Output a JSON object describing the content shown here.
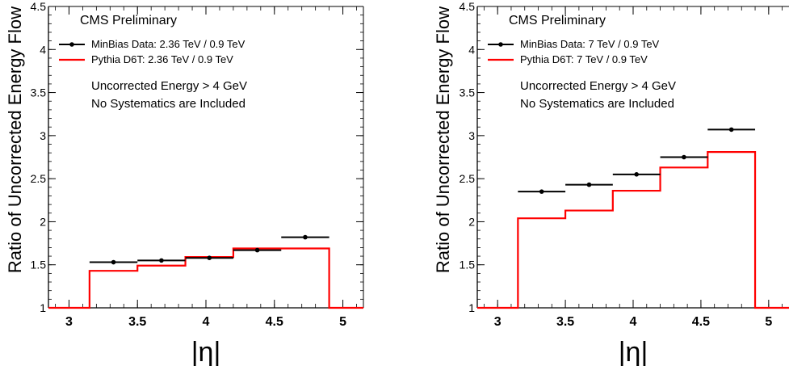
{
  "chart_data": [
    {
      "type": "step",
      "title": "",
      "xlabel": "|η|",
      "ylabel": "Ratio of Uncorrected Energy Flow",
      "xlim": [
        2.85,
        5.15
      ],
      "ylim": [
        1,
        4.5
      ],
      "xticks": [
        "3",
        "3.5",
        "4",
        "4.5",
        "5"
      ],
      "yticks": [
        "1",
        "1.5",
        "2",
        "2.5",
        "3",
        "3.5",
        "4",
        "4.5"
      ],
      "legend_position": "top-left",
      "annotations": [
        "CMS Preliminary",
        "Uncorrected Energy > 4 GeV",
        "No Systematics are Included"
      ],
      "series": [
        {
          "name": "MinBias Data: 2.36 TeV / 0.9 TeV",
          "kind": "points",
          "color": "#000000",
          "bins": [
            [
              3.15,
              3.5
            ],
            [
              3.5,
              3.85
            ],
            [
              3.85,
              4.2
            ],
            [
              4.2,
              4.55
            ],
            [
              4.55,
              4.9
            ]
          ],
          "values": [
            1.53,
            1.55,
            1.58,
            1.67,
            1.82
          ]
        },
        {
          "name": "Pythia D6T: 2.36 TeV / 0.9 TeV",
          "kind": "histogram",
          "color": "#ff0000",
          "edges": [
            2.85,
            3.15,
            3.5,
            3.85,
            4.2,
            4.55,
            4.9,
            5.15
          ],
          "values": [
            1,
            1.43,
            1.49,
            1.59,
            1.69,
            1.69,
            1
          ]
        }
      ]
    },
    {
      "type": "step",
      "title": "",
      "xlabel": "|η|",
      "ylabel": "Ratio of Uncorrected Energy Flow",
      "xlim": [
        2.85,
        5.15
      ],
      "ylim": [
        1,
        4.5
      ],
      "xticks": [
        "3",
        "3.5",
        "4",
        "4.5",
        "5"
      ],
      "yticks": [
        "1",
        "1.5",
        "2",
        "2.5",
        "3",
        "3.5",
        "4",
        "4.5"
      ],
      "legend_position": "top-left",
      "annotations": [
        "CMS Preliminary",
        "Uncorrected Energy > 4 GeV",
        "No Systematics are Included"
      ],
      "series": [
        {
          "name": "MinBias Data: 7 TeV / 0.9 TeV",
          "kind": "points",
          "color": "#000000",
          "bins": [
            [
              3.15,
              3.5
            ],
            [
              3.5,
              3.85
            ],
            [
              3.85,
              4.2
            ],
            [
              4.2,
              4.55
            ],
            [
              4.55,
              4.9
            ]
          ],
          "values": [
            2.35,
            2.43,
            2.55,
            2.75,
            3.07
          ]
        },
        {
          "name": "Pythia D6T: 7 TeV / 0.9 TeV",
          "kind": "histogram",
          "color": "#ff0000",
          "edges": [
            2.85,
            3.15,
            3.5,
            3.85,
            4.2,
            4.55,
            4.9,
            5.15
          ],
          "values": [
            1,
            2.04,
            2.13,
            2.36,
            2.63,
            2.81,
            1
          ]
        }
      ]
    }
  ]
}
